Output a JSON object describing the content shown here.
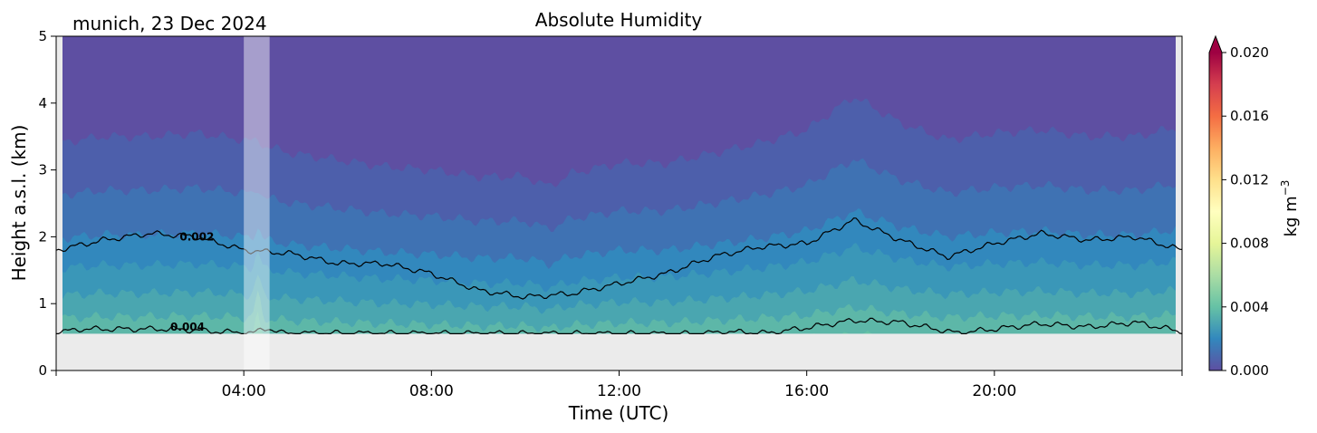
{
  "chart_data": {
    "type": "heatmap",
    "title": "Absolute Humidity",
    "subtitle": "munich, 23 Dec 2024",
    "xlabel": "Time (UTC)",
    "ylabel": "Height a.s.l. (km)",
    "xlim": [
      0,
      24
    ],
    "ylim": [
      0,
      5
    ],
    "x_ticks": [
      "04:00",
      "08:00",
      "12:00",
      "16:00",
      "20:00"
    ],
    "x_tick_hours": [
      4,
      8,
      12,
      16,
      20
    ],
    "y_ticks": [
      "0",
      "1",
      "2",
      "3",
      "4",
      "5"
    ],
    "y_tick_values": [
      0,
      1,
      2,
      3,
      4,
      5
    ],
    "colorbar": {
      "label_base": "kg m",
      "label_exp": "−3",
      "ticks": [
        "0.000",
        "0.004",
        "0.008",
        "0.012",
        "0.016",
        "0.020"
      ],
      "tick_values": [
        0,
        0.004,
        0.008,
        0.012,
        0.016,
        0.02
      ],
      "range": [
        0,
        0.02
      ],
      "colormap": "Spectral_r",
      "extend": "max"
    },
    "contour_labels": [
      {
        "text": "0.002",
        "hour": 3.0,
        "height_km": 2.0
      },
      {
        "text": "0.004",
        "hour": 2.8,
        "height_km": 0.65
      }
    ],
    "highlight_band_hours": [
      4.0,
      4.55
    ],
    "missing_below_km": 0.55,
    "grid": false,
    "colors": {
      "background": "#ffffff",
      "no_data": "#ebebeb",
      "band_0_0p001": "#5e4fa2",
      "band_0p001_0p0015": "#4d5fab",
      "band_0p0015_0p002": "#3f72b3",
      "band_0p002_0p0025": "#3288bd",
      "band_0p0025_0p003": "#3a97b8",
      "band_0p003_0p0035": "#4aa6b0",
      "band_0p0035_0p004": "#5db7a8",
      "band_above_0p004": "#66c2a5"
    }
  }
}
